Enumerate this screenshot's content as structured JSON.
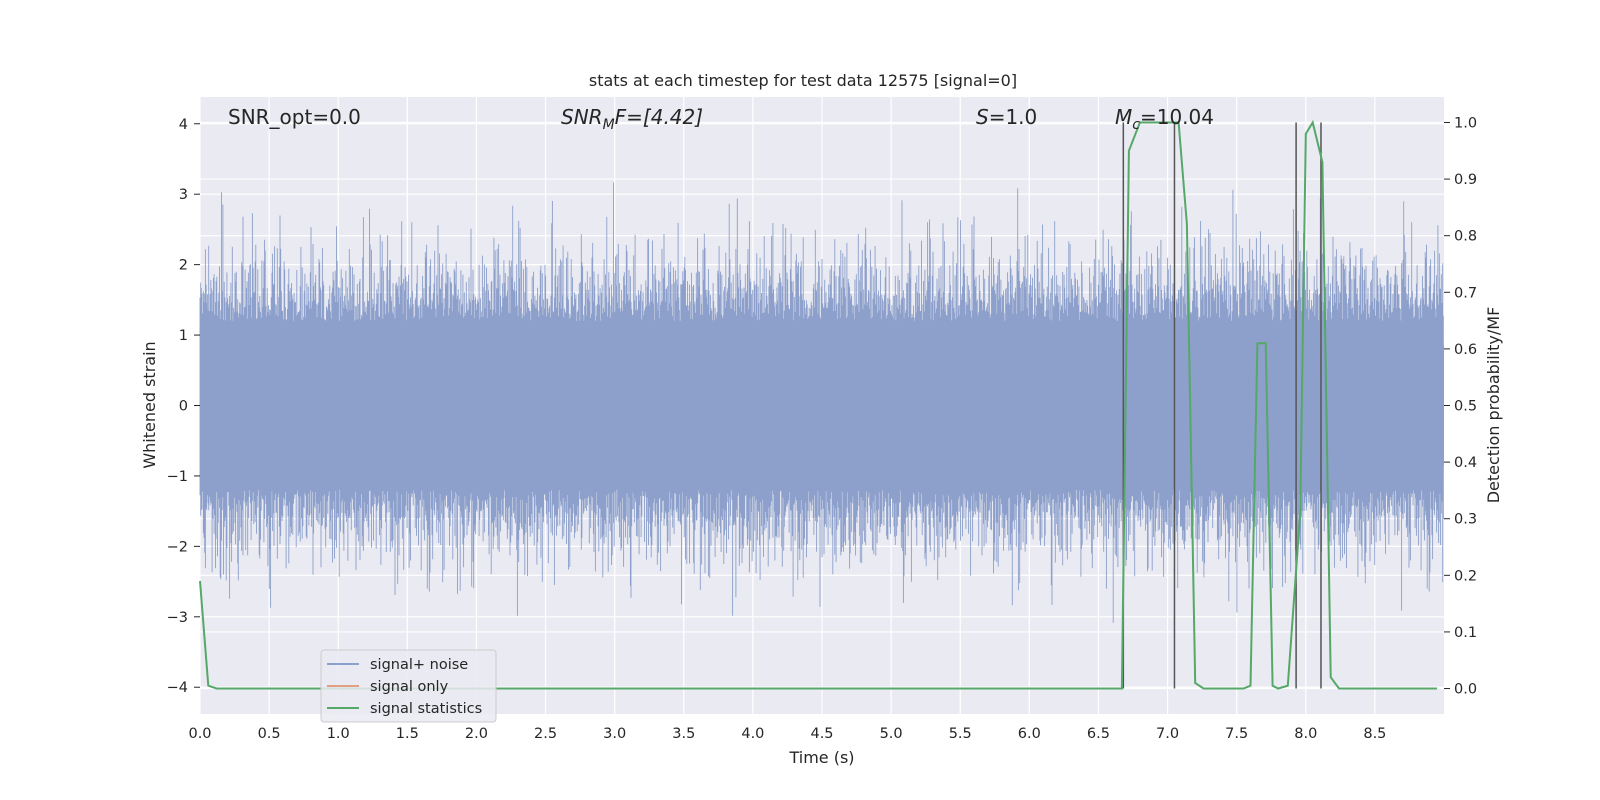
{
  "chart_data": {
    "type": "line",
    "title": "stats at each timestep for test data 12575 [signal=0]",
    "xlabel": "Time (s)",
    "ylabel_left": "Whitened strain",
    "ylabel_right": "Detection probability/MF",
    "xlim": [
      0,
      9.0
    ],
    "ylim_left": [
      -4.38,
      4.38
    ],
    "ylim_right": [
      -0.045,
      1.045
    ],
    "xticks": [
      "0.0",
      "0.5",
      "1.0",
      "1.5",
      "2.0",
      "2.5",
      "3.0",
      "3.5",
      "4.0",
      "4.5",
      "5.0",
      "5.5",
      "6.0",
      "6.5",
      "7.0",
      "7.5",
      "8.0",
      "8.5"
    ],
    "yticks_left": [
      "4",
      "3",
      "2",
      "1",
      "0",
      "−1",
      "−2",
      "−3",
      "−4"
    ],
    "yticks_right": [
      "1.0",
      "0.9",
      "0.8",
      "0.7",
      "0.6",
      "0.5",
      "0.4",
      "0.3",
      "0.2",
      "0.1",
      "0.0"
    ],
    "grid": true,
    "legend_position": "lower-left",
    "annotations": {
      "snr_opt": "SNR_opt=0.0",
      "snr_mf_base": "SNR",
      "snr_mf_sub": "M",
      "snr_mf_rest": "F=[4.42]",
      "s_var": "S",
      "s_rest": "=1.0",
      "mc_var": "M",
      "mc_sub": "c",
      "mc_rest": "=10.04"
    },
    "series": [
      {
        "name": "signal+ noise",
        "color": "#8da0cb",
        "description_values": "whitened strain noise spanning roughly −3.5 to 4.0, continuous across 0.0–9.0 s"
      },
      {
        "name": "signal only",
        "color": "#e0a183",
        "values": []
      },
      {
        "name": "signal statistics",
        "color": "#55a868",
        "x": [
          0.0,
          0.06,
          0.12,
          0.4,
          0.5,
          6.67,
          6.72,
          6.8,
          6.88,
          7.0,
          7.08,
          7.14,
          7.2,
          7.26,
          7.55,
          7.6,
          7.65,
          7.71,
          7.76,
          7.8,
          7.87,
          7.96,
          8.0,
          8.05,
          8.12,
          8.18,
          8.24,
          8.95
        ],
        "values": [
          0.19,
          0.005,
          0.0,
          0.0,
          0.0,
          0.0,
          0.95,
          1.0,
          1.0,
          1.0,
          1.0,
          0.82,
          0.01,
          0.0,
          0.0,
          0.005,
          0.61,
          0.61,
          0.005,
          0.0,
          0.005,
          0.31,
          0.98,
          1.0,
          0.93,
          0.02,
          0.0,
          0.0
        ]
      }
    ],
    "vlines_x": [
      6.68,
      7.05,
      7.93,
      8.11
    ]
  }
}
